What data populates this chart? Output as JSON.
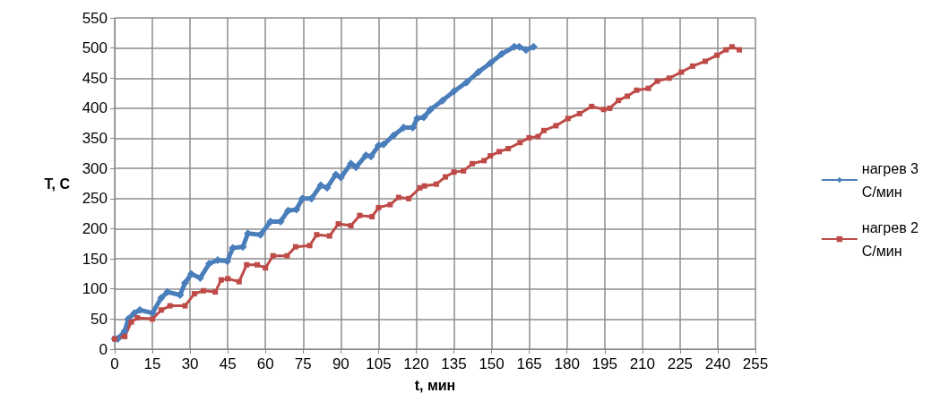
{
  "chart_data": {
    "type": "line",
    "xlabel": "t, мин",
    "ylabel": "T, C",
    "xlim": [
      0,
      255
    ],
    "ylim": [
      0,
      550
    ],
    "xticks": [
      0,
      15,
      30,
      45,
      60,
      75,
      90,
      105,
      120,
      135,
      150,
      165,
      180,
      195,
      210,
      225,
      240,
      255
    ],
    "yticks": [
      0,
      50,
      100,
      150,
      200,
      250,
      300,
      350,
      400,
      450,
      500,
      550
    ],
    "grid": true,
    "legend": "right",
    "series": [
      {
        "name": "нагрев 3 С/мин",
        "color": "#4a7ebb",
        "marker": "diamond",
        "x": [
          0,
          1.2,
          4,
          5.4,
          7.8,
          10,
          15,
          18.5,
          21,
          26,
          28,
          30.5,
          34,
          37.6,
          41,
          44.8,
          47,
          51,
          53,
          58,
          62,
          66,
          69,
          72.3,
          74.7,
          78.3,
          82,
          84.5,
          88,
          90,
          94,
          96,
          100,
          102,
          105,
          107,
          111,
          115,
          118.6,
          120.4,
          123,
          125.7,
          130.5,
          135,
          140,
          144.7,
          149.5,
          154,
          159,
          161,
          163.7,
          166.7
        ],
        "values": [
          17,
          17,
          30,
          50,
          60,
          65,
          60,
          85,
          95,
          90,
          110,
          125,
          118,
          142,
          148,
          146,
          168,
          170,
          192,
          190,
          212,
          212,
          230,
          232,
          250,
          250,
          272,
          268,
          290,
          285,
          308,
          302,
          322,
          320,
          338,
          340,
          355,
          368,
          368,
          383,
          385,
          398,
          413,
          428,
          443,
          460,
          475,
          490,
          502,
          502,
          497,
          502
        ]
      },
      {
        "name": "нагрев 2 С/мин",
        "color": "#be4b48",
        "marker": "square",
        "x": [
          0,
          4,
          6.6,
          9,
          15,
          18.5,
          22,
          28,
          31.7,
          35.3,
          40,
          42.4,
          45,
          49.5,
          52.5,
          56.7,
          60,
          63,
          68.6,
          72,
          77.6,
          80.4,
          85.5,
          89,
          94,
          97.5,
          102.4,
          105,
          109.6,
          113,
          117,
          121.5,
          123.3,
          128,
          131.6,
          135,
          138.8,
          142.3,
          147,
          149.5,
          153,
          156.6,
          161.3,
          164.9,
          168.5,
          170.8,
          175.6,
          180.4,
          185,
          189.8,
          194.6,
          197,
          200.5,
          204,
          207.7,
          212.4,
          215.9,
          220.7,
          225.5,
          230,
          235,
          239.7,
          243.3,
          245.7,
          248.6
        ],
        "values": [
          17,
          21,
          45,
          52,
          50,
          65,
          72,
          72,
          92,
          97,
          95,
          115,
          117,
          112,
          140,
          140,
          135,
          155,
          155,
          170,
          172,
          190,
          188,
          208,
          205,
          222,
          220,
          235,
          240,
          252,
          250,
          268,
          271,
          274,
          286,
          294,
          296,
          308,
          313,
          321,
          328,
          333,
          343,
          351,
          353,
          363,
          371,
          383,
          391,
          403,
          398,
          400,
          413,
          420,
          430,
          433,
          445,
          450,
          460,
          470,
          478,
          488,
          497,
          502,
          497
        ]
      }
    ]
  }
}
